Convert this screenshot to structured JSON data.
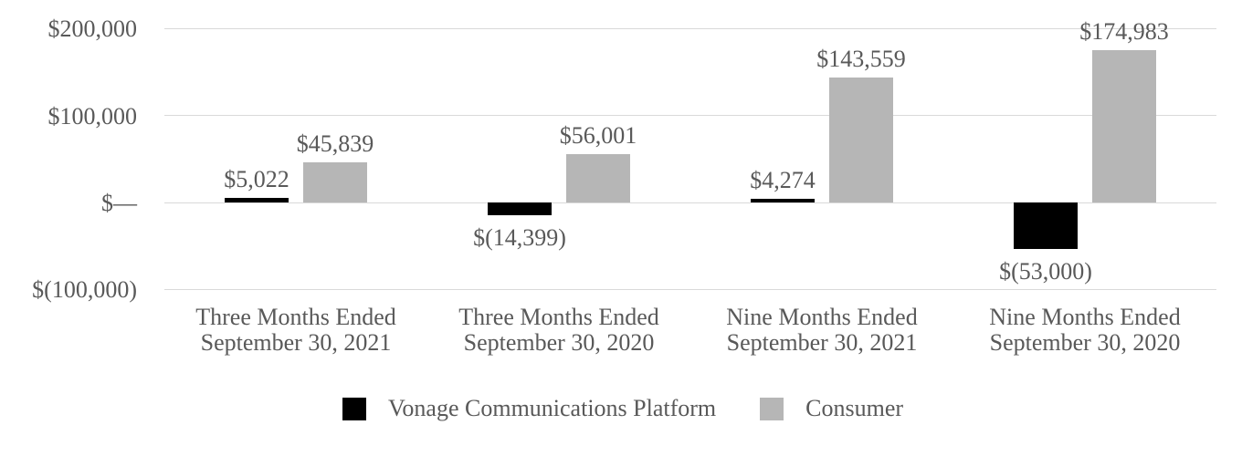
{
  "chart_data": {
    "type": "bar",
    "title": "",
    "categories": [
      [
        "Three Months Ended",
        "September 30, 2021"
      ],
      [
        "Three Months Ended",
        "September 30, 2020"
      ],
      [
        "Nine Months Ended",
        "September 30, 2021"
      ],
      [
        "Nine Months Ended",
        "September 30, 2020"
      ]
    ],
    "series": [
      {
        "name": "Vonage Communications Platform",
        "color": "#000000",
        "values": [
          5022,
          -14399,
          4274,
          -53000
        ],
        "labels": [
          "$5,022",
          "$(14,399)",
          "$4,274",
          "$(53,000)"
        ]
      },
      {
        "name": "Consumer",
        "color": "#b6b6b6",
        "values": [
          45839,
          56001,
          143559,
          174983
        ],
        "labels": [
          "$45,839",
          "$56,001",
          "$143,559",
          "$174,983"
        ]
      }
    ],
    "yticks": [
      {
        "value": 200000,
        "label": "$200,000"
      },
      {
        "value": 100000,
        "label": "$100,000"
      },
      {
        "value": 0,
        "label": "$—"
      },
      {
        "value": -100000,
        "label": "$(100,000)"
      }
    ],
    "ylim": [
      -100000,
      200000
    ],
    "grid": true,
    "legend_position": "bottom",
    "colors": {
      "grid": "#d9d9d9",
      "text": "#595959",
      "background": "#ffffff"
    }
  }
}
